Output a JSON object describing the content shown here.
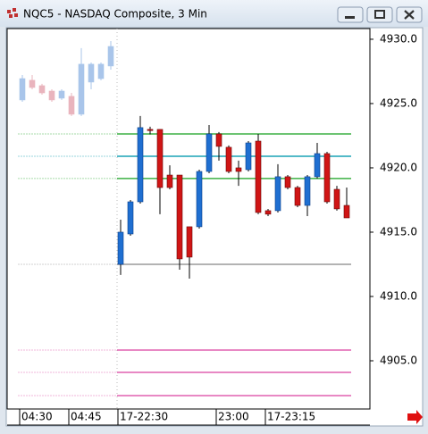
{
  "chart_data": {
    "type": "candlestick",
    "title": "NQC5 - NASDAQ Composite, 3 Min",
    "categories": [
      "04:30",
      null,
      null,
      null,
      null,
      "04:45",
      null,
      null,
      null,
      null,
      "17-22:30",
      null,
      null,
      null,
      null,
      null,
      null,
      null,
      null,
      null,
      "23:00",
      null,
      null,
      null,
      null,
      "17-23:15",
      null,
      null,
      null,
      null,
      null,
      null,
      null,
      null
    ],
    "series": [
      {
        "up_color": "#a9c5ea",
        "down_color": "#e9b4bd",
        "open": [
          4925.28,
          4926.81,
          4926.39,
          4925.97,
          4925.42,
          4925.56,
          4924.17,
          4926.67,
          4926.94,
          4927.92,
          null,
          null,
          null,
          null,
          null,
          null,
          null,
          null,
          null,
          null,
          null,
          null,
          null,
          null,
          null,
          null,
          null,
          null,
          null,
          null,
          null,
          null,
          null,
          null
        ],
        "high": [
          4927.22,
          4927.22,
          4926.53,
          4926.11,
          4926.11,
          4925.83,
          4929.31,
          4928.19,
          4928.19,
          4929.86,
          null,
          null,
          null,
          null,
          null,
          null,
          null,
          null,
          null,
          null,
          null,
          null,
          null,
          null,
          null,
          null,
          null,
          null,
          null,
          null,
          null,
          null,
          null,
          null
        ],
        "low": [
          4925.14,
          4926.11,
          4925.69,
          4925.14,
          4925.28,
          4924.03,
          4924.03,
          4926.11,
          4926.81,
          4927.64,
          null,
          null,
          null,
          null,
          null,
          null,
          null,
          null,
          null,
          null,
          null,
          null,
          null,
          null,
          null,
          null,
          null,
          null,
          null,
          null,
          null,
          null,
          null,
          null
        ],
        "close": [
          4926.94,
          4926.25,
          4925.83,
          4925.28,
          4925.97,
          4924.17,
          4928.06,
          4928.06,
          4928.06,
          4929.44,
          null,
          null,
          null,
          null,
          null,
          null,
          null,
          null,
          null,
          null,
          null,
          null,
          null,
          null,
          null,
          null,
          null,
          null,
          null,
          null,
          null,
          null,
          null,
          null
        ]
      },
      {
        "up_color": "#1f6fd1",
        "down_color": "#d01515",
        "open": [
          null,
          null,
          null,
          null,
          null,
          null,
          null,
          null,
          null,
          null,
          4912.5,
          4914.86,
          4917.36,
          4922.99,
          4922.99,
          4919.44,
          4919.44,
          4915.42,
          4915.42,
          4919.72,
          4922.64,
          4921.6,
          4920.0,
          4919.86,
          4922.08,
          4916.67,
          4916.67,
          4919.31,
          4918.47,
          4917.08,
          4919.31,
          4921.11,
          4918.33,
          4917.08
        ],
        "high": [
          null,
          null,
          null,
          null,
          null,
          null,
          null,
          null,
          null,
          null,
          4915.97,
          4917.5,
          4924.03,
          4923.2,
          4922.99,
          4920.2,
          4919.44,
          4915.42,
          4919.86,
          4923.33,
          4922.78,
          4921.74,
          4920.56,
          4922.08,
          4922.64,
          4916.8,
          4920.28,
          4919.44,
          4918.6,
          4919.44,
          4921.94,
          4921.25,
          4918.6,
          4918.47
        ],
        "low": [
          null,
          null,
          null,
          null,
          null,
          null,
          null,
          null,
          null,
          null,
          4911.67,
          4914.72,
          4917.22,
          4922.6,
          4916.4,
          4918.33,
          4912.08,
          4911.39,
          4915.28,
          4919.58,
          4920.56,
          4919.58,
          4918.6,
          4919.72,
          4916.4,
          4916.25,
          4916.53,
          4918.33,
          4916.94,
          4916.25,
          4919.17,
          4917.22,
          4916.67,
          4916.11
        ],
        "close": [
          null,
          null,
          null,
          null,
          null,
          null,
          null,
          null,
          null,
          null,
          4915.0,
          4917.36,
          4923.13,
          4922.9,
          4918.47,
          4918.47,
          4912.92,
          4913.06,
          4919.72,
          4922.64,
          4921.67,
          4919.72,
          4919.72,
          4921.94,
          4916.53,
          4916.4,
          4919.31,
          4918.47,
          4917.08,
          4919.31,
          4921.11,
          4917.36,
          4916.81,
          4916.11
        ]
      }
    ],
    "hlines": [
      {
        "value": 4922.64,
        "color": "#3cb043"
      },
      {
        "value": 4920.9,
        "color": "#1aa3b5"
      },
      {
        "value": 4919.17,
        "color": "#3cb043"
      },
      {
        "value": 4912.5,
        "color": "#9a9a9a"
      },
      {
        "value": 4905.83,
        "color": "#e060b0"
      },
      {
        "value": 4904.1,
        "color": "#e060b0"
      },
      {
        "value": 4902.29,
        "color": "#e060b0"
      }
    ],
    "ylim": [
      4901.25,
      4930.83
    ],
    "yticks": [
      {
        "value": 4930,
        "label": "4930.0"
      },
      {
        "value": 4925,
        "label": "4925.0"
      },
      {
        "value": 4920,
        "label": "4920.0"
      },
      {
        "value": 4915,
        "label": "4915.0"
      },
      {
        "value": 4910,
        "label": "4910.0"
      },
      {
        "value": 4905,
        "label": "4905.0"
      }
    ]
  }
}
